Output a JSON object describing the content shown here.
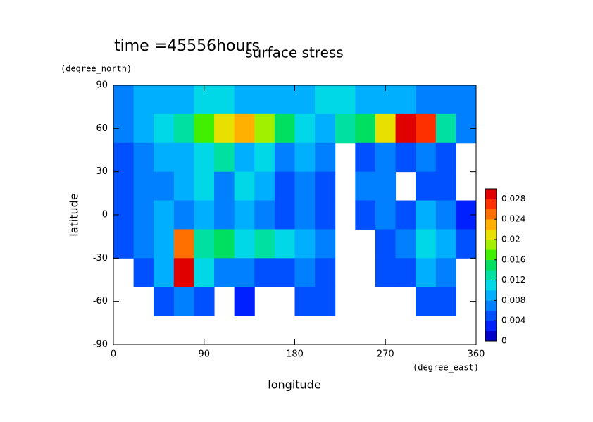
{
  "chart_data": {
    "type": "heatmap",
    "title": "surface stress",
    "subtitle": "time =45556hours",
    "x_label": "longitude",
    "x_units": "(degree_east)",
    "y_label": "latitude",
    "y_units": "(degree_north)",
    "xlim": [
      0,
      360
    ],
    "xticks": [
      0,
      90,
      180,
      270,
      360
    ],
    "ylim": [
      -90,
      90
    ],
    "yticks": [
      -90,
      -60,
      -30,
      0,
      30,
      60,
      90
    ],
    "x": [
      10,
      30,
      50,
      70,
      90,
      110,
      130,
      150,
      170,
      190,
      210,
      230,
      250,
      270,
      290,
      310,
      330,
      350
    ],
    "y": [
      80,
      60,
      40,
      20,
      0,
      -20,
      -40,
      -60,
      -80
    ],
    "z": [
      [
        0.006,
        0.008,
        0.008,
        0.008,
        0.01,
        0.01,
        0.008,
        0.008,
        0.008,
        0.008,
        0.01,
        0.01,
        0.008,
        0.008,
        0.008,
        0.006,
        0.006,
        0.006
      ],
      [
        0.006,
        0.008,
        0.01,
        0.012,
        0.016,
        0.02,
        0.022,
        0.018,
        0.014,
        0.01,
        0.008,
        0.012,
        0.014,
        0.02,
        0.028,
        0.026,
        0.012,
        0.006
      ],
      [
        0.004,
        0.006,
        0.008,
        0.008,
        0.01,
        0.012,
        0.008,
        0.01,
        0.006,
        0.008,
        0.006,
        null,
        0.004,
        0.006,
        0.004,
        0.006,
        0.004,
        null
      ],
      [
        0.004,
        0.006,
        0.006,
        0.008,
        0.01,
        0.006,
        0.01,
        0.008,
        0.004,
        0.006,
        0.004,
        null,
        0.006,
        0.006,
        null,
        0.004,
        0.004,
        null
      ],
      [
        0.004,
        0.006,
        0.008,
        0.006,
        0.008,
        0.006,
        0.008,
        0.006,
        0.004,
        0.006,
        0.004,
        null,
        0.004,
        0.006,
        0.004,
        0.008,
        0.006,
        0.002
      ],
      [
        0.004,
        0.006,
        0.008,
        0.024,
        0.012,
        0.014,
        0.01,
        0.012,
        0.01,
        0.008,
        0.006,
        null,
        null,
        0.004,
        0.006,
        0.01,
        0.008,
        0.004
      ],
      [
        null,
        0.004,
        0.008,
        0.028,
        0.01,
        0.006,
        0.006,
        0.004,
        0.004,
        0.006,
        0.004,
        null,
        null,
        0.004,
        0.004,
        0.008,
        0.006,
        null
      ],
      [
        null,
        null,
        0.004,
        0.006,
        0.004,
        null,
        0.002,
        null,
        null,
        0.004,
        0.004,
        null,
        null,
        null,
        null,
        0.004,
        0.004,
        null
      ],
      [
        null,
        null,
        null,
        null,
        null,
        null,
        null,
        null,
        null,
        null,
        null,
        null,
        null,
        null,
        null,
        null,
        null,
        null
      ]
    ],
    "levels": [
      0,
      0.002,
      0.004,
      0.006,
      0.008,
      0.01,
      0.012,
      0.014,
      0.016,
      0.018,
      0.02,
      0.022,
      0.024,
      0.026,
      0.028,
      0.03
    ],
    "colors": [
      "#0000c8",
      "#0020ff",
      "#0050ff",
      "#0080ff",
      "#00b0ff",
      "#00d8e8",
      "#00e0a0",
      "#00e060",
      "#40f000",
      "#a0f000",
      "#e8e000",
      "#ffb000",
      "#ff7000",
      "#ff3000",
      "#e00000"
    ],
    "colorbar_ticks": [
      0,
      0.004,
      0.008,
      0.012,
      0.016,
      0.02,
      0.024,
      0.028
    ]
  }
}
